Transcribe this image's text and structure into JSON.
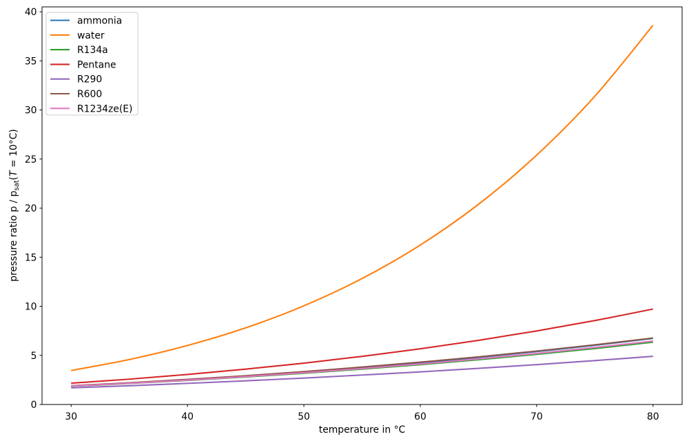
{
  "chart_data": {
    "type": "line",
    "title": "",
    "xlabel": "temperature in °C",
    "ylabel": "pressure ratio p / p_sat(T = 10°C)",
    "ylabel_parts": {
      "p1": "pressure ratio p / p",
      "sub": "sat",
      "p2": "(",
      "T": "T",
      "p3": " = 10°C)"
    },
    "xlim": [
      27.5,
      82.5
    ],
    "ylim": [
      0,
      40.5
    ],
    "xticks": [
      30,
      40,
      50,
      60,
      70,
      80
    ],
    "yticks": [
      0,
      5,
      10,
      15,
      20,
      25,
      30,
      35,
      40
    ],
    "grid": false,
    "legend_position": "upper left",
    "axis_color": "#000000",
    "legend_border_color": "#cccccc",
    "legend_background": "#ffffff",
    "x": [
      30,
      35,
      40,
      45,
      50,
      55,
      60,
      65,
      70,
      75,
      80
    ],
    "series": [
      {
        "name": "ammonia",
        "color": "#1f77b4",
        "values": [
          1.9,
          2.2,
          2.53,
          2.9,
          3.31,
          3.76,
          4.25,
          4.79,
          5.39,
          6.03,
          6.73
        ]
      },
      {
        "name": "water",
        "color": "#ff7f0e",
        "values": [
          3.46,
          4.58,
          6.01,
          7.81,
          10.05,
          12.83,
          16.24,
          20.39,
          25.4,
          31.4,
          38.63
        ]
      },
      {
        "name": "R134a",
        "color": "#2ca02c",
        "values": [
          1.86,
          2.14,
          2.45,
          2.8,
          3.18,
          3.6,
          4.06,
          4.56,
          5.11,
          5.7,
          6.35
        ]
      },
      {
        "name": "Pentane",
        "color": "#d62728",
        "values": [
          2.17,
          2.58,
          3.06,
          3.6,
          4.21,
          4.9,
          5.67,
          6.53,
          7.49,
          8.55,
          9.72
        ]
      },
      {
        "name": "R290",
        "color": "#9467bd",
        "values": [
          1.7,
          1.91,
          2.15,
          2.41,
          2.69,
          3.0,
          3.32,
          3.68,
          4.06,
          4.47,
          4.91
        ]
      },
      {
        "name": "R600",
        "color": "#8c564b",
        "values": [
          1.91,
          2.21,
          2.56,
          2.93,
          3.35,
          3.81,
          4.31,
          4.85,
          5.44,
          6.08,
          6.77
        ]
      },
      {
        "name": "R1234ze(E)",
        "color": "#e377c2",
        "values": [
          1.88,
          2.16,
          2.48,
          2.84,
          3.23,
          3.66,
          4.13,
          4.64,
          5.2,
          5.81,
          6.46
        ]
      }
    ]
  }
}
